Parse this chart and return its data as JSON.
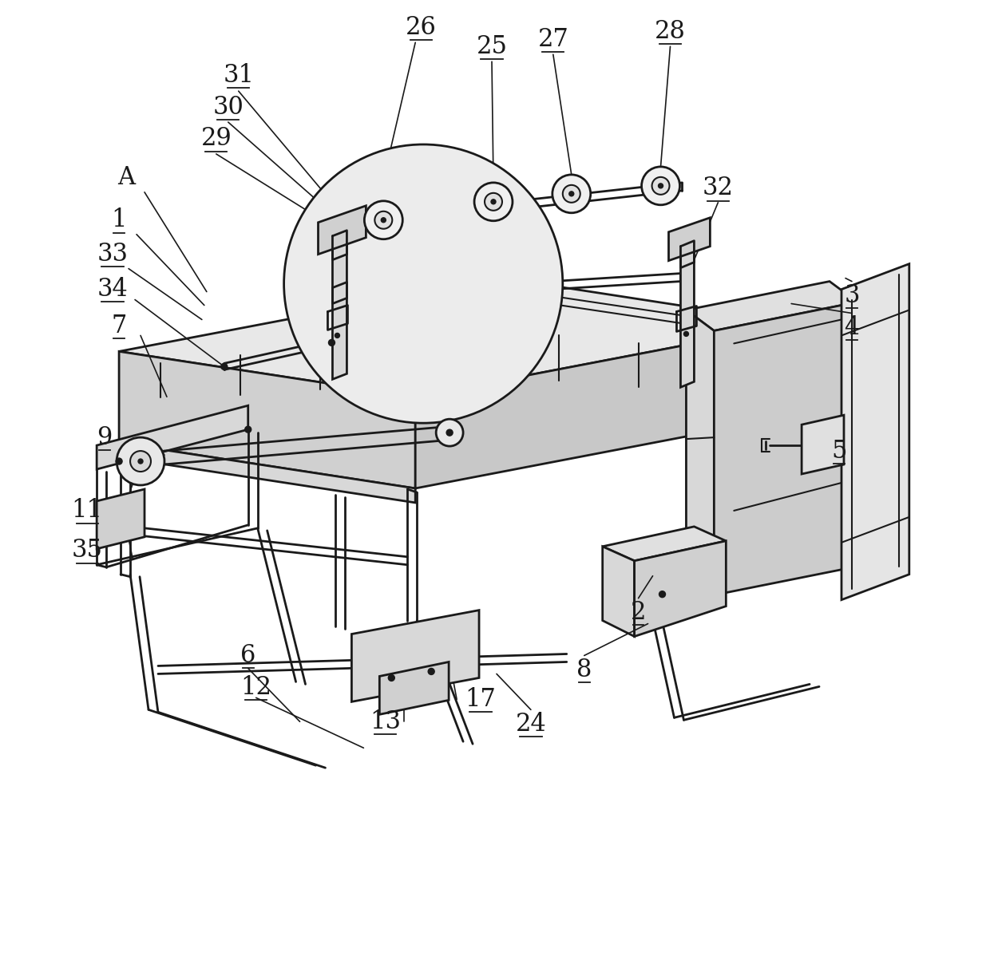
{
  "background_color": "#ffffff",
  "line_color": "#1a1a1a",
  "line_width": 1.5,
  "title": "",
  "figsize": [
    12.4,
    12.03
  ],
  "dpi": 100,
  "label_fontsize": 22,
  "label_font": "DejaVu Serif"
}
